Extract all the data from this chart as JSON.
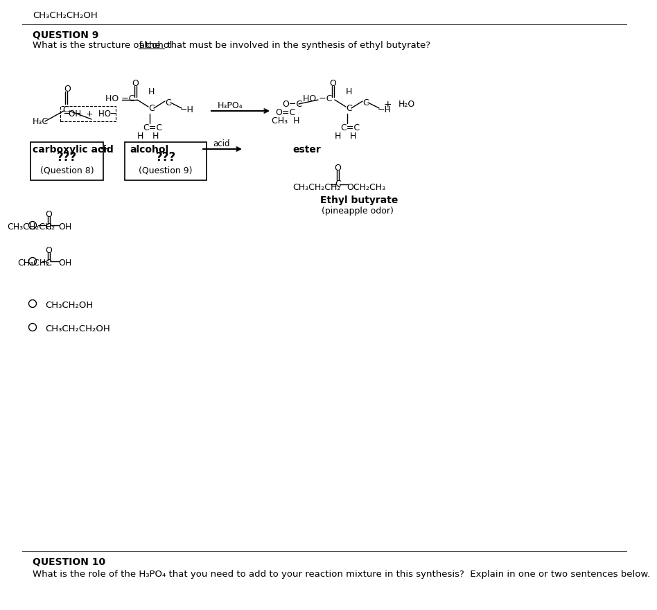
{
  "bg_color": "#ffffff",
  "top_formula": "CH₃CH₂CH₂OH",
  "q9_label": "QUESTION 9",
  "q9_question_pre": "What is the structure of the ",
  "q9_question_ul": "alcohol",
  "q9_question_post": " that must be involved in the synthesis of ethyl butyrate?",
  "carboxylic_label": "carboxylic acid",
  "alcohol_label": "alcohol",
  "ester_label": "ester",
  "acid_label": "acid",
  "ethyl_butyrate_label": "Ethyl butyrate",
  "pineapple_label": "(pineapple odor)",
  "h3po4_label": "H₃PO₄",
  "h2o_label": "H₂O",
  "q10_label": "QUESTION 10",
  "q10_question": "What is the role of the H₃PO₄ that you need to add to your reaction mixture in this synthesis?  Explain in one or two sentences below.",
  "line_color": "#000000",
  "text_color": "#000000"
}
